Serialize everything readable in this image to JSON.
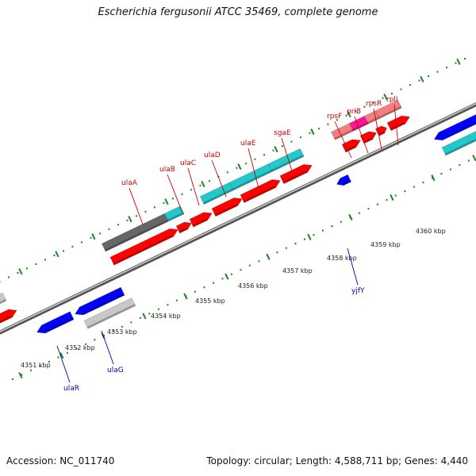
{
  "title": "Escherichia fergusonii ATCC 35469, complete genome",
  "footer": {
    "accession": "Accession: NC_011740",
    "summary": "Topology: circular; Length: 4,588,711 bp; Genes: 4,440"
  },
  "colors": {
    "forward_gene": "#ff0000",
    "reverse_gene": "#0000ff",
    "cyan_feature": "#22c8cc",
    "pale_red_feature": "#f08080",
    "magenta_feature": "#ff1493",
    "gray_feature": "#666666",
    "light_gray_feature": "#c8c8c8",
    "tick_green": "#208020",
    "forward_label": "#cc0000",
    "reverse_label": "#0000aa"
  },
  "scale_labels": [
    "4351 kbp",
    "4352 kbp",
    "4353 kbp",
    "4354 kbp",
    "4355 kbp",
    "4356 kbp",
    "4357 kbp",
    "4358 kbp",
    "4359 kbp",
    "4360 kbp"
  ],
  "gene_labels_forward": [
    "ulaA",
    "ulaB",
    "ulaC",
    "ulaD",
    "ulaE",
    "sgaE",
    "rpsF",
    "priB",
    "rpsR",
    "rplI"
  ],
  "gene_labels_reverse": [
    "ulaR",
    "ulaG",
    "yjfY"
  ]
}
